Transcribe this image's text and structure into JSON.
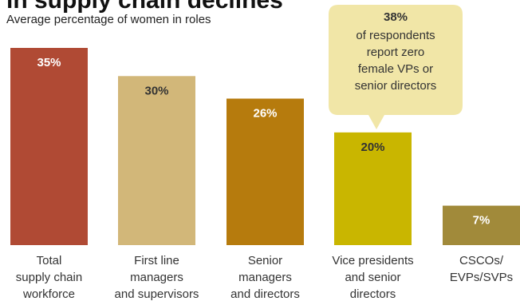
{
  "chart_data": {
    "type": "bar",
    "title": "in supply chain declines",
    "subtitle": "Average percentage of women in roles",
    "categories": [
      [
        "Total",
        "supply chain",
        "workforce"
      ],
      [
        "First line",
        "managers",
        "and supervisors"
      ],
      [
        "Senior",
        "managers",
        "and directors"
      ],
      [
        "Vice presidents",
        "and senior",
        "directors"
      ],
      [
        "CSCOs/",
        "EVPs/SVPs"
      ]
    ],
    "values": [
      35,
      30,
      26,
      20,
      7
    ],
    "value_labels": [
      "35%",
      "30%",
      "26%",
      "20%",
      "7%"
    ],
    "colors": [
      "#b04a34",
      "#d2b779",
      "#b67b0d",
      "#c9b600",
      "#a18a3a"
    ],
    "value_label_colors": [
      "#ffffff",
      "#333333",
      "#ffffff",
      "#333333",
      "#ffffff"
    ],
    "ylim": [
      0,
      35
    ],
    "annotation": {
      "headline": "38%",
      "lines": [
        "of respondents",
        "report zero",
        "female VPs or",
        "senior directors"
      ],
      "fill": "#f1e6a7"
    }
  }
}
